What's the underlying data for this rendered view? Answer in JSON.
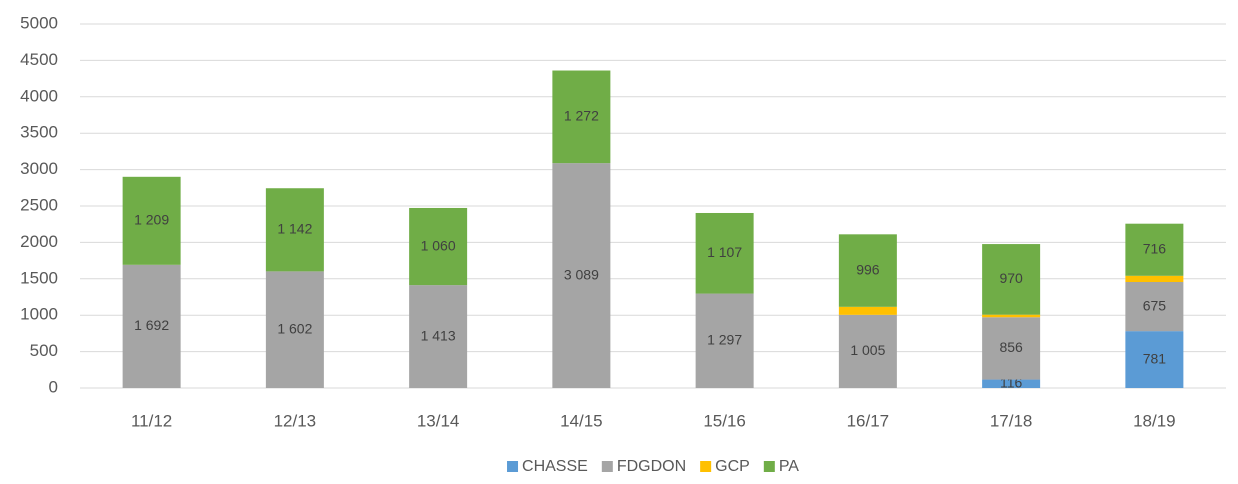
{
  "chart_data": {
    "type": "stacked_bar",
    "categories": [
      "11/12",
      "12/13",
      "13/14",
      "14/15",
      "15/16",
      "16/17",
      "17/18",
      "18/19"
    ],
    "series": [
      {
        "name": "CHASSE",
        "color": "#5b9bd5",
        "values": [
          0,
          0,
          0,
          0,
          0,
          0,
          116,
          781
        ],
        "value_labels": [
          null,
          null,
          null,
          null,
          null,
          null,
          "116",
          "781"
        ]
      },
      {
        "name": "FDGDON",
        "color": "#a5a5a5",
        "values": [
          1692,
          1602,
          1413,
          3089,
          1297,
          1005,
          856,
          675
        ],
        "value_labels": [
          "1 692",
          "1 602",
          "1 413",
          "3 089",
          "1 297",
          "1 005",
          "856",
          "675"
        ]
      },
      {
        "name": "GCP",
        "color": "#ffc000",
        "values": [
          0,
          0,
          0,
          0,
          0,
          110,
          35,
          85
        ]
      },
      {
        "name": "PA",
        "color": "#70ad47",
        "values": [
          1209,
          1142,
          1060,
          1272,
          1107,
          996,
          970,
          716
        ],
        "value_labels": [
          "1 209",
          "1 142",
          "1 060",
          "1 272",
          "1 107",
          "996",
          "970",
          "716"
        ]
      }
    ],
    "ylim": [
      0,
      5000
    ],
    "yticks": [
      0,
      500,
      1000,
      1500,
      2000,
      2500,
      3000,
      3500,
      4000,
      4500,
      5000
    ],
    "grid": true,
    "legend": "bottom"
  }
}
